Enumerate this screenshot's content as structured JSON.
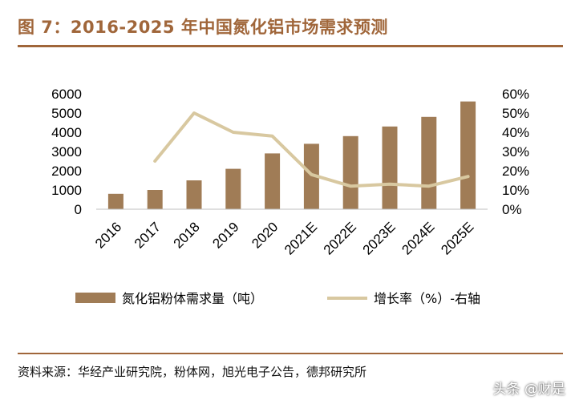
{
  "header": {
    "title": "图 7：2016-2025 年中国氮化铝市场需求预测"
  },
  "footer": {
    "source": "资料来源：华经产业研究院，粉体网，旭光电子公告，德邦研究所",
    "watermark": "头条 @财是"
  },
  "colors": {
    "bar": "#a07c56",
    "line": "#d8c8a0",
    "accent": "#a0663a"
  },
  "chart_data": {
    "type": "bar",
    "title": "",
    "categories": [
      "2016",
      "2017",
      "2018",
      "2019",
      "2020",
      "2021E",
      "2022E",
      "2023E",
      "2024E",
      "2025E"
    ],
    "series": [
      {
        "name": "氮化铝粉体需求量（吨）",
        "type": "bar",
        "axis": "left",
        "values": [
          800,
          1000,
          1500,
          2100,
          2900,
          3400,
          3800,
          4300,
          4800,
          5600
        ]
      },
      {
        "name": "增长率（%）-右轴",
        "type": "line",
        "axis": "right",
        "values": [
          null,
          25,
          50,
          40,
          38,
          18,
          12,
          13,
          12,
          17
        ]
      }
    ],
    "y_left": {
      "range": [
        0,
        6000
      ],
      "ticks": [
        "0",
        "1000",
        "2000",
        "3000",
        "4000",
        "5000",
        "6000"
      ]
    },
    "y_right": {
      "range": [
        0,
        60
      ],
      "ticks": [
        "0%",
        "10%",
        "20%",
        "30%",
        "40%",
        "50%",
        "60%"
      ]
    },
    "grid": false,
    "legend_position": "bottom"
  }
}
